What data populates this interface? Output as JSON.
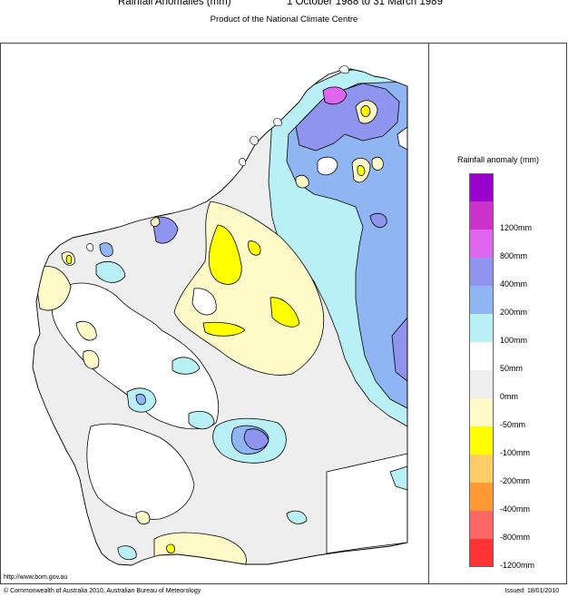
{
  "header": {
    "title": "Rainfall Anomalies (mm)",
    "period": "1 October 1988 to 31 March 1989",
    "subtitle": "Product of the National Climate Centre"
  },
  "legend": {
    "title": "Rainfall anomaly (mm)",
    "items": [
      {
        "label": "",
        "color": "#9a00cc"
      },
      {
        "label": "1200mm",
        "color": "#cc33cc"
      },
      {
        "label": "800mm",
        "color": "#e066f0"
      },
      {
        "label": "400mm",
        "color": "#8f94ee"
      },
      {
        "label": "200mm",
        "color": "#8fb6f2"
      },
      {
        "label": "100mm",
        "color": "#b8f0f5"
      },
      {
        "label": "50mm",
        "color": "#ffffff"
      },
      {
        "label": "0mm",
        "color": "#eeeeee"
      },
      {
        "label": "-50mm",
        "color": "#fffac8"
      },
      {
        "label": "-100mm",
        "color": "#ffff00"
      },
      {
        "label": "-200mm",
        "color": "#ffcc66"
      },
      {
        "label": "-400mm",
        "color": "#ff9933"
      },
      {
        "label": "-800mm",
        "color": "#ff6666"
      },
      {
        "label": "-1200mm",
        "color": "#ff3333"
      }
    ]
  },
  "footer": {
    "url": "http://www.bom.gov.au",
    "copyright": "© Commonwealth of Australia 2010, Australian Bureau of Meteorology",
    "issued": "Issued: 18/01/2010"
  }
}
